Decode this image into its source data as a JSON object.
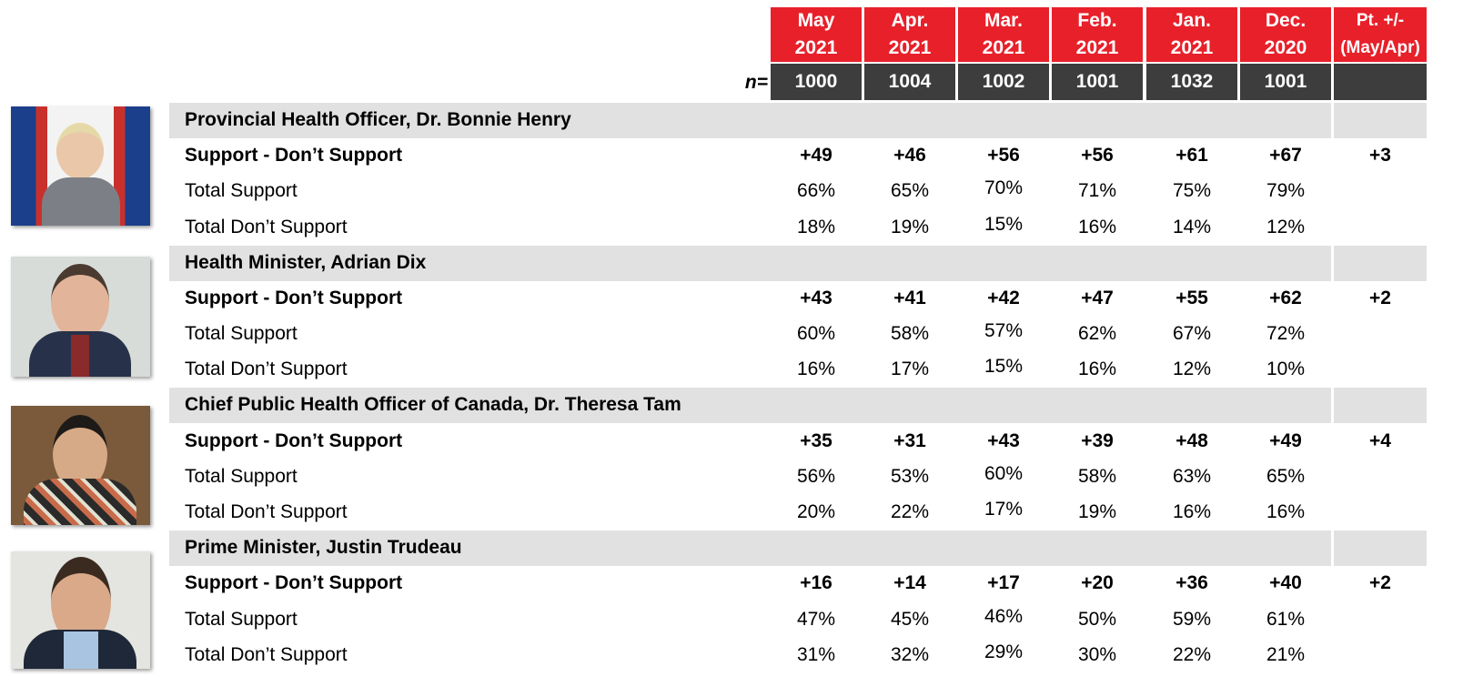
{
  "header": {
    "columns": [
      [
        "May",
        "2021"
      ],
      [
        "Apr.",
        "2021"
      ],
      [
        "Mar.",
        "2021"
      ],
      [
        "Feb.",
        "2021"
      ],
      [
        "Jan.",
        "2021"
      ],
      [
        "Dec.",
        "2020"
      ],
      [
        "Pt. +/-",
        "(May/Apr)"
      ]
    ],
    "n_label": "n=",
    "n": [
      1000,
      1004,
      1002,
      1001,
      1032,
      1001
    ]
  },
  "sections": [
    {
      "title": "Provincial Health Officer, Dr. Bonnie Henry",
      "rows": [
        {
          "label": "Support - Don’t Support",
          "values": [
            "+49",
            "+46",
            "+56",
            "+56",
            "+61",
            "+67"
          ],
          "change": "+3"
        },
        {
          "label": "Total Support",
          "values": [
            "66%",
            "65%",
            "70%",
            "71%",
            "75%",
            "79%"
          ]
        },
        {
          "label": "Total Don’t Support",
          "values": [
            "18%",
            "19%",
            "15%",
            "16%",
            "14%",
            "12%"
          ]
        }
      ]
    },
    {
      "title": "Health Minister, Adrian Dix",
      "rows": [
        {
          "label": "Support - Don’t Support",
          "values": [
            "+43",
            "+41",
            "+42",
            "+47",
            "+55",
            "+62"
          ],
          "change": "+2"
        },
        {
          "label": "Total Support",
          "values": [
            "60%",
            "58%",
            "57%",
            "62%",
            "67%",
            "72%"
          ]
        },
        {
          "label": "Total Don’t Support",
          "values": [
            "16%",
            "17%",
            "15%",
            "16%",
            "12%",
            "10%"
          ]
        }
      ]
    },
    {
      "title": "Chief Public Health Officer of Canada, Dr. Theresa Tam",
      "rows": [
        {
          "label": "Support - Don’t Support",
          "values": [
            "+35",
            "+31",
            "+43",
            "+39",
            "+48",
            "+49"
          ],
          "change": "+4"
        },
        {
          "label": "Total Support",
          "values": [
            "56%",
            "53%",
            "60%",
            "58%",
            "63%",
            "65%"
          ]
        },
        {
          "label": "Total Don’t Support",
          "values": [
            "20%",
            "22%",
            "17%",
            "19%",
            "16%",
            "16%"
          ]
        }
      ]
    },
    {
      "title": "Prime Minister, Justin Trudeau",
      "rows": [
        {
          "label": "Support - Don’t Support",
          "values": [
            "+16",
            "+14",
            "+17",
            "+20",
            "+36",
            "+40"
          ],
          "change": "+2"
        },
        {
          "label": "Total Support",
          "values": [
            "47%",
            "45%",
            "46%",
            "50%",
            "59%",
            "61%"
          ]
        },
        {
          "label": "Total Don’t Support",
          "values": [
            "31%",
            "32%",
            "29%",
            "30%",
            "22%",
            "21%"
          ]
        }
      ]
    }
  ]
}
